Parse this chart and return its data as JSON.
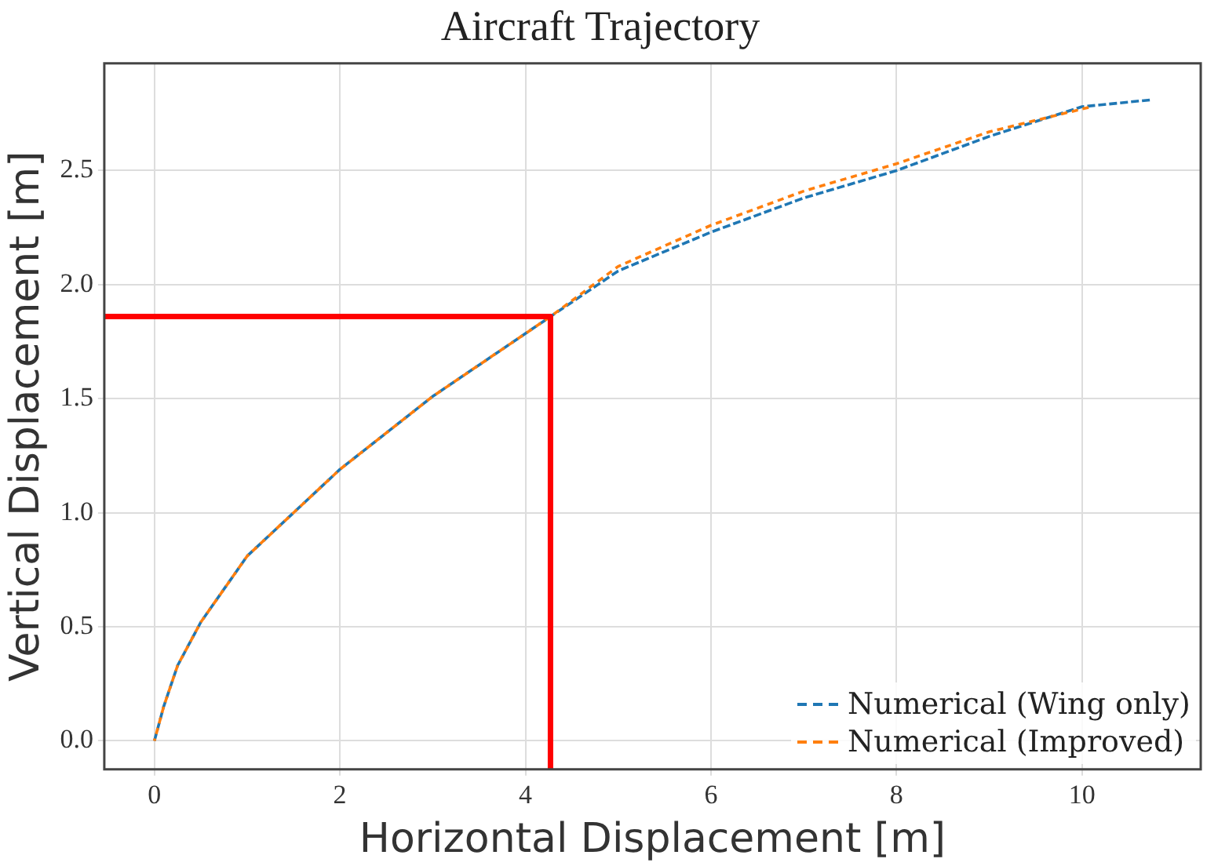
{
  "chart_data": {
    "type": "line",
    "title": "Aircraft Trajectory",
    "xlabel": "Horizontal Displacement [m]",
    "ylabel": "Vertical Displacement [m]",
    "xlim": [
      -0.54,
      11.28
    ],
    "xticks": [
      0,
      2,
      4,
      6,
      8,
      10
    ],
    "ylim": [
      -0.125,
      2.97
    ],
    "yticks": [
      {
        "value": 0,
        "label": "0.0"
      },
      0.5,
      {
        "value": 1,
        "label": "1.0"
      },
      1.5,
      {
        "value": 2,
        "label": "2.0"
      },
      2.5
    ],
    "grid": true,
    "legend": "bottom right",
    "marker": "none",
    "series": [
      {
        "name": "Numerical (Wing only)",
        "color": "#1f77b4",
        "line_style": "dashed",
        "x": [
          0,
          0.1,
          0.25,
          0.5,
          1,
          2,
          3,
          4.27,
          5,
          6,
          7,
          8,
          9,
          10,
          10.74
        ],
        "values": [
          0,
          0.15,
          0.33,
          0.52,
          0.81,
          1.19,
          1.51,
          1.86,
          2.06,
          2.23,
          2.38,
          2.5,
          2.65,
          2.78,
          2.81
        ]
      },
      {
        "name": "Numerical (Improved)",
        "color": "#ff7f0e",
        "line_style": "dashed",
        "x": [
          0,
          0.1,
          0.25,
          0.5,
          1,
          2,
          3,
          4.27,
          5,
          6,
          7,
          8,
          9,
          10.1
        ],
        "values": [
          0,
          0.15,
          0.33,
          0.52,
          0.81,
          1.19,
          1.51,
          1.86,
          2.08,
          2.26,
          2.41,
          2.53,
          2.67,
          2.78
        ]
      },
      {
        "type": "line",
        "color": "#ff0000",
        "line_style": "solid",
        "x": [
          -0.54,
          4.27,
          4.27
        ],
        "values": [
          1.86,
          1.86,
          -0.125
        ]
      }
    ]
  }
}
